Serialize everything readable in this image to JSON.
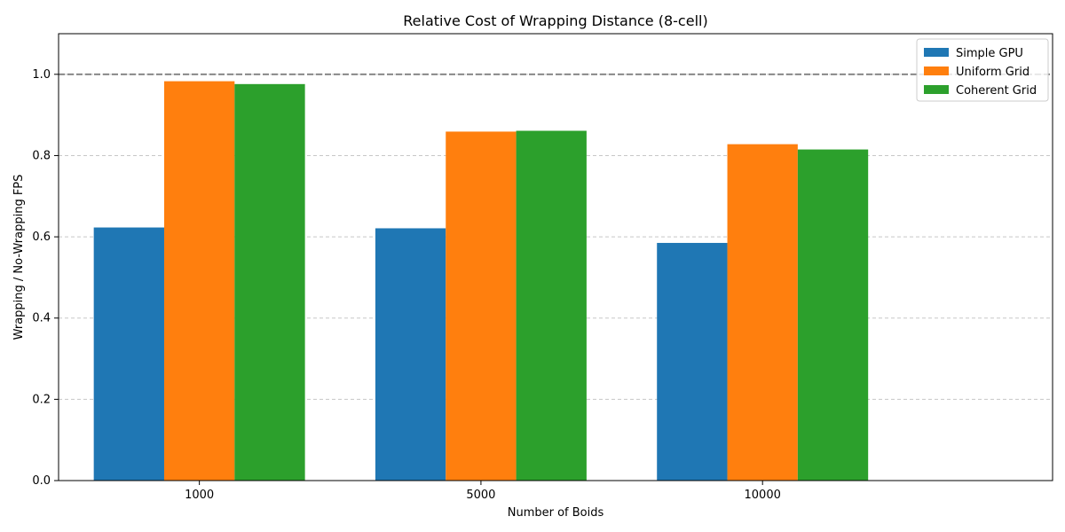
{
  "chart_data": {
    "type": "bar",
    "title": "Relative Cost of Wrapping Distance (8-cell)",
    "xlabel": "Number of Boids",
    "ylabel": "Wrapping / No-Wrapping FPS",
    "categories": [
      "1000",
      "5000",
      "10000"
    ],
    "series": [
      {
        "name": "Simple GPU",
        "color": "#1f77b4",
        "values": [
          0.623,
          0.621,
          0.585
        ]
      },
      {
        "name": "Uniform Grid",
        "color": "#ff7f0e",
        "values": [
          0.983,
          0.859,
          0.828
        ]
      },
      {
        "name": "Coherent Grid",
        "color": "#2ca02c",
        "values": [
          0.976,
          0.861,
          0.815
        ]
      }
    ],
    "ylim": [
      0,
      1.1
    ],
    "yticks": [
      "0.0",
      "0.2",
      "0.4",
      "0.6",
      "0.8",
      "1.0"
    ],
    "reference_line": {
      "value": 1.0,
      "style": "dashed",
      "color": "#808080"
    },
    "grid": {
      "axis": "y",
      "style": "dashed",
      "color": "#c8c8c8"
    },
    "legend": {
      "position": "top-right"
    }
  }
}
